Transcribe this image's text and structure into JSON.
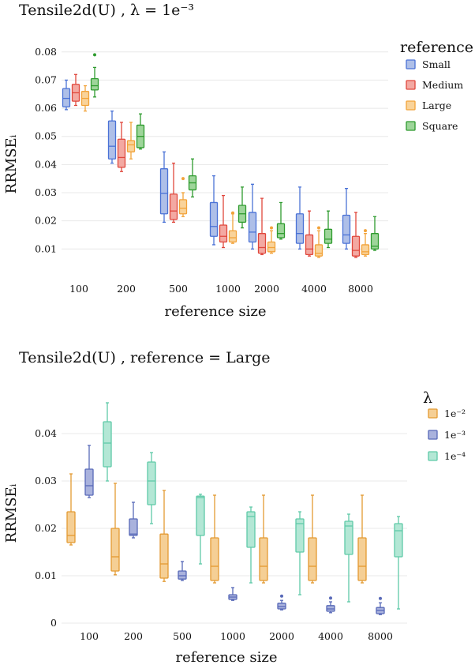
{
  "chart_data": [
    {
      "type": "box",
      "title": "Tensile2d(U) , λ = 1e⁻³",
      "xlabel": "reference size",
      "ylabel": "RRMSEᵢ",
      "categories": [
        "100",
        "200",
        "500",
        "1000",
        "2000",
        "4000",
        "8000"
      ],
      "yticks": [
        "0.01",
        "0.02",
        "0.03",
        "0.04",
        "0.05",
        "0.06",
        "0.07",
        "0.08"
      ],
      "ylim": [
        0.0025,
        0.0805
      ],
      "legend_title": "reference",
      "series": [
        {
          "name": "Small",
          "color": "#4a72d6",
          "fill": "#aebfe8",
          "boxes": [
            {
              "min": 0.0595,
              "q1": 0.0605,
              "med": 0.0635,
              "q3": 0.067,
              "max": 0.07,
              "outliers": []
            },
            {
              "min": 0.0405,
              "q1": 0.042,
              "med": 0.0465,
              "q3": 0.0555,
              "max": 0.059,
              "outliers": []
            },
            {
              "min": 0.0195,
              "q1": 0.0225,
              "med": 0.0298,
              "q3": 0.0385,
              "max": 0.0445,
              "outliers": []
            },
            {
              "min": 0.0115,
              "q1": 0.0145,
              "med": 0.018,
              "q3": 0.0265,
              "max": 0.036,
              "outliers": []
            },
            {
              "min": 0.01,
              "q1": 0.0125,
              "med": 0.016,
              "q3": 0.023,
              "max": 0.033,
              "outliers": []
            },
            {
              "min": 0.01,
              "q1": 0.012,
              "med": 0.0155,
              "q3": 0.0225,
              "max": 0.032,
              "outliers": []
            },
            {
              "min": 0.01,
              "q1": 0.012,
              "med": 0.015,
              "q3": 0.022,
              "max": 0.0315,
              "outliers": []
            }
          ]
        },
        {
          "name": "Medium",
          "color": "#e0473c",
          "fill": "#f3a9a2",
          "boxes": [
            {
              "min": 0.061,
              "q1": 0.0625,
              "med": 0.0655,
              "q3": 0.0685,
              "max": 0.072,
              "outliers": []
            },
            {
              "min": 0.0375,
              "q1": 0.039,
              "med": 0.0425,
              "q3": 0.049,
              "max": 0.055,
              "outliers": []
            },
            {
              "min": 0.0195,
              "q1": 0.0205,
              "med": 0.0235,
              "q3": 0.0295,
              "max": 0.0405,
              "outliers": []
            },
            {
              "min": 0.0105,
              "q1": 0.0125,
              "med": 0.0145,
              "q3": 0.0185,
              "max": 0.029,
              "outliers": []
            },
            {
              "min": 0.008,
              "q1": 0.0085,
              "med": 0.0105,
              "q3": 0.0155,
              "max": 0.028,
              "outliers": []
            },
            {
              "min": 0.0075,
              "q1": 0.008,
              "med": 0.01,
              "q3": 0.015,
              "max": 0.0235,
              "outliers": []
            },
            {
              "min": 0.007,
              "q1": 0.0075,
              "med": 0.0095,
              "q3": 0.0145,
              "max": 0.023,
              "outliers": []
            }
          ]
        },
        {
          "name": "Large",
          "color": "#f2a33a",
          "fill": "#f9d39a",
          "boxes": [
            {
              "min": 0.059,
              "q1": 0.061,
              "med": 0.0635,
              "q3": 0.066,
              "max": 0.068,
              "outliers": []
            },
            {
              "min": 0.042,
              "q1": 0.0445,
              "med": 0.047,
              "q3": 0.0485,
              "max": 0.055,
              "outliers": []
            },
            {
              "min": 0.0215,
              "q1": 0.0225,
              "med": 0.0245,
              "q3": 0.0275,
              "max": 0.03,
              "outliers": [
                0.035
              ]
            },
            {
              "min": 0.012,
              "q1": 0.0125,
              "med": 0.014,
              "q3": 0.0165,
              "max": 0.0225,
              "outliers": [
                0.0228
              ]
            },
            {
              "min": 0.0085,
              "q1": 0.009,
              "med": 0.0105,
              "q3": 0.0125,
              "max": 0.0165,
              "outliers": [
                0.0175
              ]
            },
            {
              "min": 0.007,
              "q1": 0.0075,
              "med": 0.0085,
              "q3": 0.0115,
              "max": 0.0165,
              "outliers": [
                0.0175
              ]
            },
            {
              "min": 0.0075,
              "q1": 0.008,
              "med": 0.009,
              "q3": 0.0115,
              "max": 0.0155,
              "outliers": [
                0.0165
              ]
            }
          ]
        },
        {
          "name": "Square",
          "color": "#2e9b2e",
          "fill": "#9ed59a",
          "boxes": [
            {
              "min": 0.064,
              "q1": 0.0665,
              "med": 0.068,
              "q3": 0.0705,
              "max": 0.0745,
              "outliers": [
                0.079
              ]
            },
            {
              "min": 0.0455,
              "q1": 0.046,
              "med": 0.05,
              "q3": 0.054,
              "max": 0.058,
              "outliers": []
            },
            {
              "min": 0.0285,
              "q1": 0.031,
              "med": 0.0335,
              "q3": 0.036,
              "max": 0.042,
              "outliers": []
            },
            {
              "min": 0.0175,
              "q1": 0.0195,
              "med": 0.0225,
              "q3": 0.0255,
              "max": 0.032,
              "outliers": []
            },
            {
              "min": 0.0135,
              "q1": 0.014,
              "med": 0.0155,
              "q3": 0.019,
              "max": 0.0265,
              "outliers": []
            },
            {
              "min": 0.0105,
              "q1": 0.012,
              "med": 0.0135,
              "q3": 0.017,
              "max": 0.0235,
              "outliers": []
            },
            {
              "min": 0.0095,
              "q1": 0.01,
              "med": 0.011,
              "q3": 0.0155,
              "max": 0.0215,
              "outliers": []
            }
          ]
        }
      ]
    },
    {
      "type": "box",
      "title": "Tensile2d(U) , reference = Large",
      "xlabel": "reference size",
      "ylabel": "RRMSEᵢ",
      "categories": [
        "100",
        "200",
        "500",
        "1000",
        "2000",
        "4000",
        "8000"
      ],
      "yticks": [
        "0",
        "0.01",
        "0.02",
        "0.03",
        "0.04"
      ],
      "ylim": [
        -0.0005,
        0.0465
      ],
      "legend_title": "λ",
      "series": [
        {
          "name": "1e⁻²",
          "color": "#e39a32",
          "fill": "#f5cf95",
          "boxes": [
            {
              "min": 0.0165,
              "q1": 0.017,
              "med": 0.0185,
              "q3": 0.0235,
              "max": 0.0315,
              "outliers": []
            },
            {
              "min": 0.0102,
              "q1": 0.011,
              "med": 0.014,
              "q3": 0.02,
              "max": 0.0295,
              "outliers": []
            },
            {
              "min": 0.0088,
              "q1": 0.0095,
              "med": 0.0125,
              "q3": 0.0188,
              "max": 0.028,
              "outliers": []
            },
            {
              "min": 0.0085,
              "q1": 0.009,
              "med": 0.012,
              "q3": 0.018,
              "max": 0.027,
              "outliers": []
            },
            {
              "min": 0.0085,
              "q1": 0.009,
              "med": 0.012,
              "q3": 0.018,
              "max": 0.027,
              "outliers": []
            },
            {
              "min": 0.0085,
              "q1": 0.009,
              "med": 0.012,
              "q3": 0.018,
              "max": 0.027,
              "outliers": []
            },
            {
              "min": 0.0085,
              "q1": 0.009,
              "med": 0.012,
              "q3": 0.018,
              "max": 0.027,
              "outliers": []
            }
          ]
        },
        {
          "name": "1e⁻³",
          "color": "#5869b8",
          "fill": "#a9b2dd",
          "boxes": [
            {
              "min": 0.0265,
              "q1": 0.027,
              "med": 0.029,
              "q3": 0.0325,
              "max": 0.0375,
              "outliers": []
            },
            {
              "min": 0.018,
              "q1": 0.0185,
              "med": 0.0188,
              "q3": 0.022,
              "max": 0.0255,
              "outliers": []
            },
            {
              "min": 0.009,
              "q1": 0.0093,
              "med": 0.01,
              "q3": 0.011,
              "max": 0.013,
              "outliers": []
            },
            {
              "min": 0.0048,
              "q1": 0.005,
              "med": 0.0055,
              "q3": 0.006,
              "max": 0.0075,
              "outliers": []
            },
            {
              "min": 0.0028,
              "q1": 0.003,
              "med": 0.0035,
              "q3": 0.0042,
              "max": 0.0048,
              "outliers": [
                0.0057
              ]
            },
            {
              "min": 0.0022,
              "q1": 0.0025,
              "med": 0.003,
              "q3": 0.0037,
              "max": 0.0045,
              "outliers": [
                0.0053
              ]
            },
            {
              "min": 0.0018,
              "q1": 0.002,
              "med": 0.0027,
              "q3": 0.0033,
              "max": 0.0043,
              "outliers": [
                0.0052
              ]
            }
          ]
        },
        {
          "name": "1e⁻⁴",
          "color": "#5fcaa8",
          "fill": "#b3e7d5",
          "boxes": [
            {
              "min": 0.03,
              "q1": 0.033,
              "med": 0.038,
              "q3": 0.0425,
              "max": 0.0465,
              "outliers": []
            },
            {
              "min": 0.021,
              "q1": 0.025,
              "med": 0.03,
              "q3": 0.034,
              "max": 0.036,
              "outliers": []
            },
            {
              "min": 0.0125,
              "q1": 0.0185,
              "med": 0.0265,
              "q3": 0.0268,
              "max": 0.0272,
              "outliers": []
            },
            {
              "min": 0.0085,
              "q1": 0.016,
              "med": 0.0225,
              "q3": 0.0235,
              "max": 0.0245,
              "outliers": []
            },
            {
              "min": 0.006,
              "q1": 0.015,
              "med": 0.021,
              "q3": 0.022,
              "max": 0.0235,
              "outliers": []
            },
            {
              "min": 0.0045,
              "q1": 0.0145,
              "med": 0.0205,
              "q3": 0.0215,
              "max": 0.023,
              "outliers": []
            },
            {
              "min": 0.003,
              "q1": 0.014,
              "med": 0.0195,
              "q3": 0.021,
              "max": 0.0225,
              "outliers": []
            }
          ]
        }
      ]
    }
  ]
}
